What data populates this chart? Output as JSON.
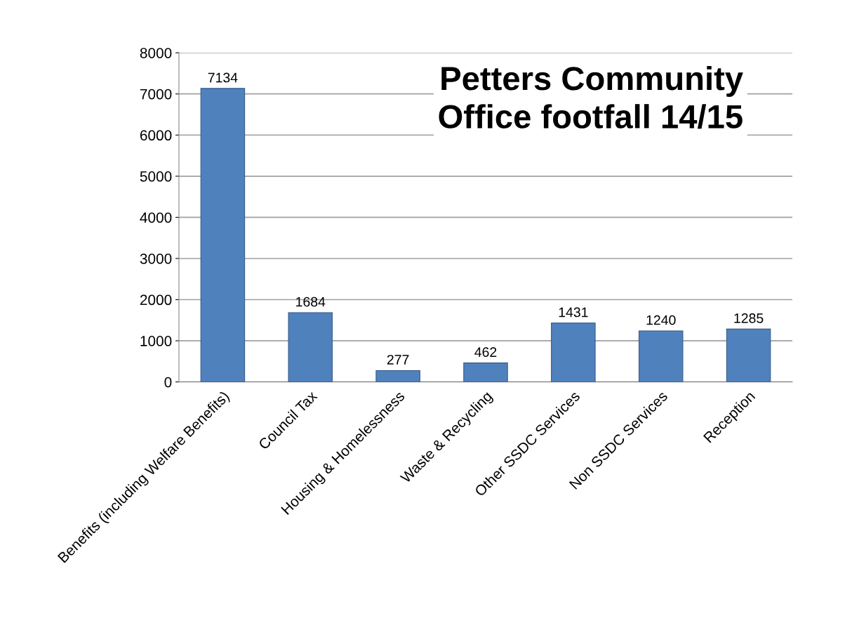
{
  "chart_data": {
    "type": "bar",
    "title": "Petters Community\nOffice footfall 14/15",
    "categories": [
      "Benefits (including Welfare Benefits)",
      "Council Tax",
      "Housing & Homelessness",
      "Waste & Recycling",
      "Other SSDC Services",
      "Non SSDC Services",
      "Reception"
    ],
    "values": [
      7134,
      1684,
      277,
      462,
      1431,
      1240,
      1285
    ],
    "color": "#4f81bd",
    "ylim": [
      0,
      8000
    ],
    "yticks": [
      0,
      1000,
      2000,
      3000,
      4000,
      5000,
      6000,
      7000,
      8000
    ],
    "grid": "y",
    "data_labels": true
  }
}
